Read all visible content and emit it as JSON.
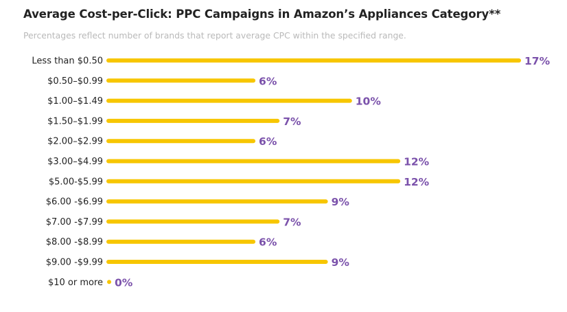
{
  "colors": {
    "bar": "#f7c600",
    "value_text": "#7b52ab",
    "title_text": "#222222",
    "subtitle_text": "#b9b9b9"
  },
  "chart_data": {
    "type": "bar",
    "orientation": "horizontal",
    "title": "Average Cost-per-Click: PPC Campaigns in Amazon’s Appliances Category**",
    "subtitle": "Percentages reflect number of brands that report average CPC within the specified range.",
    "xlabel": "",
    "ylabel": "",
    "xlim": [
      0,
      17
    ],
    "grid": false,
    "legend": "none",
    "categories": [
      "Less than $0.50",
      "$0.50–$0.99",
      "$1.00–$1.49",
      "$1.50–$1.99",
      "$2.00–$2.99",
      "$3.00–$4.99",
      "$5.00-$5.99",
      "$6.00 -$6.99",
      "$7.00 -$7.99",
      "$8.00 -$8.99",
      "$9.00 -$9.99",
      "$10 or more"
    ],
    "values": [
      17,
      6,
      10,
      7,
      6,
      12,
      12,
      9,
      7,
      6,
      9,
      0
    ],
    "value_labels": [
      "17%",
      "6%",
      "10%",
      "7%",
      "6%",
      "12%",
      "12%",
      "9%",
      "7%",
      "6%",
      "9%",
      "0%"
    ]
  }
}
